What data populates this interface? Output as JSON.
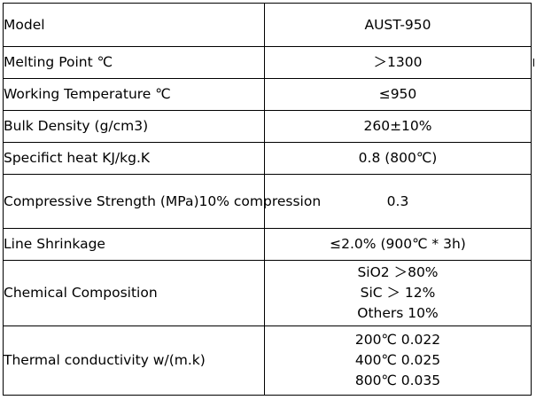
{
  "table": {
    "rows": [
      {
        "label": "Model",
        "value": [
          "AUST-950"
        ]
      },
      {
        "label": "Melting Point ℃",
        "value": [
          "＞1300"
        ]
      },
      {
        "label": "Working Temperature ℃",
        "value": [
          "≤950"
        ]
      },
      {
        "label": "Bulk Density (g/cm3)",
        "value": [
          "260±10%"
        ]
      },
      {
        "label": "Specifict heat KJ/kg.K",
        "value": [
          "0.8 (800℃)"
        ]
      },
      {
        "label": "Compressive Strength (MPa)10% compression",
        "value": [
          "0.3"
        ]
      },
      {
        "label": "Line Shrinkage",
        "value": [
          "≤2.0% (900℃ * 3h)"
        ]
      },
      {
        "label": "Chemical Composition",
        "value": [
          "SiO2  ＞80%",
          "SiC ＞ 12%",
          "Others 10%"
        ]
      },
      {
        "label": "Thermal conductivity  w/(m.k)",
        "value": [
          "200℃    0.022",
          "400℃  0.025",
          "800℃   0.035"
        ]
      }
    ]
  }
}
